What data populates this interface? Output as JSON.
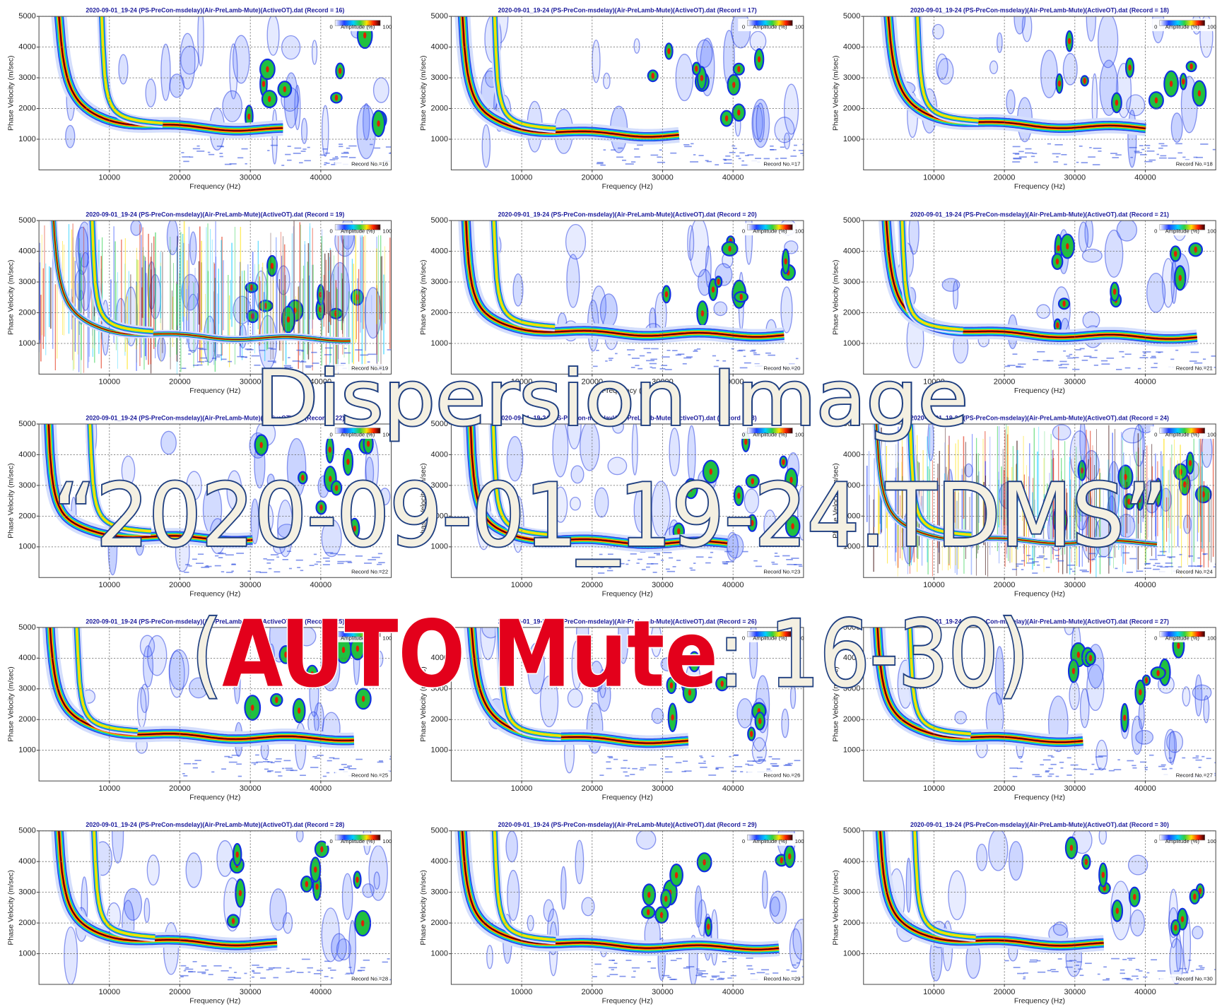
{
  "chart_data": [
    {
      "type": "heatmap",
      "title": "2020-09-01_19-24 (PS-PreCon-msdelay)(Air-PreLamb-Mute)(ActiveOT).dat (Record = 16)",
      "xlabel": "Frequency (Hz)",
      "ylabel": "Phase Velocity (m/sec)",
      "xlim": [
        0,
        50000
      ],
      "ylim": [
        0,
        5000
      ],
      "xticks": [
        10000,
        20000,
        30000,
        40000
      ],
      "yticks": [
        1000,
        2000,
        3000,
        4000,
        5000
      ],
      "grid": true,
      "colorbar": {
        "min": 0,
        "label": "Amplitude (%)",
        "max": 100
      },
      "annotation": "Record No.=16"
    },
    {
      "type": "heatmap",
      "title": "2020-09-01_19-24 (PS-PreCon-msdelay)(Air-PreLamb-Mute)(ActiveOT).dat (Record = 17)",
      "xlabel": "Frequency (Hz)",
      "ylabel": "Phase Velocity (m/sec)",
      "xlim": [
        0,
        50000
      ],
      "ylim": [
        0,
        5000
      ],
      "xticks": [
        10000,
        20000,
        30000,
        40000
      ],
      "yticks": [
        1000,
        2000,
        3000,
        4000,
        5000
      ],
      "grid": true,
      "colorbar": {
        "min": 0,
        "label": "Amplitude (%)",
        "max": 100
      },
      "annotation": "Record No.=17"
    },
    {
      "type": "heatmap",
      "title": "2020-09-01_19-24 (PS-PreCon-msdelay)(Air-PreLamb-Mute)(ActiveOT).dat (Record = 18)",
      "xlabel": "Frequency (Hz)",
      "ylabel": "Phase Velocity (m/sec)",
      "xlim": [
        0,
        50000
      ],
      "ylim": [
        0,
        5000
      ],
      "xticks": [
        10000,
        20000,
        30000,
        40000
      ],
      "yticks": [
        1000,
        2000,
        3000,
        4000,
        5000
      ],
      "grid": true,
      "colorbar": {
        "min": 0,
        "label": "Amplitude (%)",
        "max": 100
      },
      "annotation": "Record No.=18"
    },
    {
      "type": "heatmap",
      "title": "2020-09-01_19-24 (PS-PreCon-msdelay)(Air-PreLamb-Mute)(ActiveOT).dat (Record = 19)",
      "xlabel": "Frequency (Hz)",
      "ylabel": "Phase Velocity (m/sec)",
      "xlim": [
        0,
        50000
      ],
      "ylim": [
        0,
        5000
      ],
      "xticks": [
        10000,
        20000,
        30000,
        40000
      ],
      "yticks": [
        1000,
        2000,
        3000,
        4000,
        5000
      ],
      "grid": true,
      "colorbar": {
        "min": 0,
        "label": "Amplitude (%)",
        "max": 100
      },
      "annotation": "Record No.=19"
    },
    {
      "type": "heatmap",
      "title": "2020-09-01_19-24 (PS-PreCon-msdelay)(Air-PreLamb-Mute)(ActiveOT).dat (Record = 20)",
      "xlabel": "Frequency (Hz)",
      "ylabel": "Phase Velocity (m/sec)",
      "xlim": [
        0,
        50000
      ],
      "ylim": [
        0,
        5000
      ],
      "xticks": [
        10000,
        20000,
        30000,
        40000
      ],
      "yticks": [
        1000,
        2000,
        3000,
        4000,
        5000
      ],
      "grid": true,
      "colorbar": {
        "min": 0,
        "label": "Amplitude (%)",
        "max": 100
      },
      "annotation": "Record No.=20"
    },
    {
      "type": "heatmap",
      "title": "2020-09-01_19-24 (PS-PreCon-msdelay)(Air-PreLamb-Mute)(ActiveOT).dat (Record = 21)",
      "xlabel": "Frequency (Hz)",
      "ylabel": "Phase Velocity (m/sec)",
      "xlim": [
        0,
        50000
      ],
      "ylim": [
        0,
        5000
      ],
      "xticks": [
        10000,
        20000,
        30000,
        40000
      ],
      "yticks": [
        1000,
        2000,
        3000,
        4000,
        5000
      ],
      "grid": true,
      "colorbar": {
        "min": 0,
        "label": "Amplitude (%)",
        "max": 100
      },
      "annotation": "Record No.=21"
    },
    {
      "type": "heatmap",
      "title": "2020-09-01_19-24 (PS-PreCon-msdelay)(Air-PreLamb-Mute)(ActiveOT).dat (Record = 22)",
      "xlabel": "Frequency (Hz)",
      "ylabel": "Phase Velocity (m/sec)",
      "xlim": [
        0,
        50000
      ],
      "ylim": [
        0,
        5000
      ],
      "xticks": [
        10000,
        20000,
        30000,
        40000
      ],
      "yticks": [
        1000,
        2000,
        3000,
        4000,
        5000
      ],
      "grid": true,
      "colorbar": {
        "min": 0,
        "label": "Amplitude (%)",
        "max": 100
      },
      "annotation": "Record No.=22"
    },
    {
      "type": "heatmap",
      "title": "2020-09-01_19-24 (PS-PreCon-msdelay)(Air-PreLamb-Mute)(ActiveOT).dat (Record = 23)",
      "xlabel": "Frequency (Hz)",
      "ylabel": "Phase Velocity (m/sec)",
      "xlim": [
        0,
        50000
      ],
      "ylim": [
        0,
        5000
      ],
      "xticks": [
        10000,
        20000,
        30000,
        40000
      ],
      "yticks": [
        1000,
        2000,
        3000,
        4000,
        5000
      ],
      "grid": true,
      "colorbar": {
        "min": 0,
        "label": "Amplitude (%)",
        "max": 100
      },
      "annotation": "Record No.=23"
    },
    {
      "type": "heatmap",
      "title": "2020-09-01_19-24 (PS-PreCon-msdelay)(Air-PreLamb-Mute)(ActiveOT).dat (Record = 24)",
      "xlabel": "Frequency (Hz)",
      "ylabel": "Phase Velocity (m/sec)",
      "xlim": [
        0,
        50000
      ],
      "ylim": [
        0,
        5000
      ],
      "xticks": [
        10000,
        20000,
        30000,
        40000
      ],
      "yticks": [
        1000,
        2000,
        3000,
        4000,
        5000
      ],
      "grid": true,
      "colorbar": {
        "min": 0,
        "label": "Amplitude (%)",
        "max": 100
      },
      "annotation": "Record No.=24"
    },
    {
      "type": "heatmap",
      "title": "2020-09-01_19-24 (PS-PreCon-msdelay)(Air-PreLamb-Mute)(ActiveOT).dat (Record = 25)",
      "xlabel": "Frequency (Hz)",
      "ylabel": "Phase Velocity (m/sec)",
      "xlim": [
        0,
        50000
      ],
      "ylim": [
        0,
        5000
      ],
      "xticks": [
        10000,
        20000,
        30000,
        40000
      ],
      "yticks": [
        1000,
        2000,
        3000,
        4000,
        5000
      ],
      "grid": true,
      "colorbar": {
        "min": 0,
        "label": "Amplitude (%)",
        "max": 100
      },
      "annotation": "Record No.=25"
    },
    {
      "type": "heatmap",
      "title": "2020-09-01_19-24 (PS-PreCon-msdelay)(Air-PreLamb-Mute)(ActiveOT).dat (Record = 26)",
      "xlabel": "Frequency (Hz)",
      "ylabel": "Phase Velocity (m/sec)",
      "xlim": [
        0,
        50000
      ],
      "ylim": [
        0,
        5000
      ],
      "xticks": [
        10000,
        20000,
        30000,
        40000
      ],
      "yticks": [
        1000,
        2000,
        3000,
        4000,
        5000
      ],
      "grid": true,
      "colorbar": {
        "min": 0,
        "label": "Amplitude (%)",
        "max": 100
      },
      "annotation": "Record No.=26"
    },
    {
      "type": "heatmap",
      "title": "2020-09-01_19-24 (PS-PreCon-msdelay)(Air-PreLamb-Mute)(ActiveOT).dat (Record = 27)",
      "xlabel": "Frequency (Hz)",
      "ylabel": "Phase Velocity (m/sec)",
      "xlim": [
        0,
        50000
      ],
      "ylim": [
        0,
        5000
      ],
      "xticks": [
        10000,
        20000,
        30000,
        40000
      ],
      "yticks": [
        1000,
        2000,
        3000,
        4000,
        5000
      ],
      "grid": true,
      "colorbar": {
        "min": 0,
        "label": "Amplitude (%)",
        "max": 100
      },
      "annotation": "Record No.=27"
    },
    {
      "type": "heatmap",
      "title": "2020-09-01_19-24 (PS-PreCon-msdelay)(Air-PreLamb-Mute)(ActiveOT).dat (Record = 28)",
      "xlabel": "Frequency (Hz)",
      "ylabel": "Phase Velocity (m/sec)",
      "xlim": [
        0,
        50000
      ],
      "ylim": [
        0,
        5000
      ],
      "xticks": [
        10000,
        20000,
        30000,
        40000
      ],
      "yticks": [
        1000,
        2000,
        3000,
        4000,
        5000
      ],
      "grid": true,
      "colorbar": {
        "min": 0,
        "label": "Amplitude (%)",
        "max": 100
      },
      "annotation": "Record No.=28"
    },
    {
      "type": "heatmap",
      "title": "2020-09-01_19-24 (PS-PreCon-msdelay)(Air-PreLamb-Mute)(ActiveOT).dat (Record = 29)",
      "xlabel": "Frequency (Hz)",
      "ylabel": "Phase Velocity (m/sec)",
      "xlim": [
        0,
        50000
      ],
      "ylim": [
        0,
        5000
      ],
      "xticks": [
        10000,
        20000,
        30000,
        40000
      ],
      "yticks": [
        1000,
        2000,
        3000,
        4000,
        5000
      ],
      "grid": true,
      "colorbar": {
        "min": 0,
        "label": "Amplitude (%)",
        "max": 100
      },
      "annotation": "Record No.=29"
    },
    {
      "type": "heatmap",
      "title": "2020-09-01_19-24 (PS-PreCon-msdelay)(Air-PreLamb-Mute)(ActiveOT).dat (Record = 30)",
      "xlabel": "Frequency (Hz)",
      "ylabel": "Phase Velocity (m/sec)",
      "xlim": [
        0,
        50000
      ],
      "ylim": [
        0,
        5000
      ],
      "xticks": [
        10000,
        20000,
        30000,
        40000
      ],
      "yticks": [
        1000,
        2000,
        3000,
        4000,
        5000
      ],
      "grid": true,
      "colorbar": {
        "min": 0,
        "label": "Amplitude (%)",
        "max": 100
      },
      "annotation": "Record No.=30"
    }
  ],
  "overlay": {
    "title": "Dispersion Image",
    "filename": "“2020-09-01_19-24.TDMS”",
    "subtitle": [
      "(",
      "AUTO Mute",
      ": 16-30)"
    ]
  }
}
